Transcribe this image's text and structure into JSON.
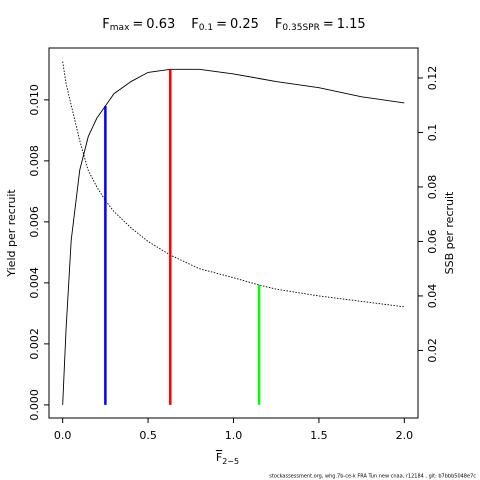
{
  "chart_data": {
    "type": "line",
    "x_label": {
      "text": "F",
      "sub": "2−5"
    },
    "y_label": "Yield per recruit",
    "y2_label": "SSB per recruit",
    "footer": "stockassessment.org, whg.7b-ce-k FRA Tun new cnaa, r12184 , git: b7bbb5048e7c",
    "x": [
      0,
      0.02,
      0.05,
      0.1,
      0.15,
      0.2,
      0.25,
      0.3,
      0.4,
      0.5,
      0.63,
      0.8,
      1.0,
      1.15,
      1.25,
      1.5,
      1.75,
      2.0
    ],
    "series": [
      {
        "name": "Yield per recruit",
        "color": "#000000",
        "dash": "none",
        "axis": "y",
        "values": [
          0,
          0.0025,
          0.0054,
          0.0077,
          0.0088,
          0.0094,
          0.0098,
          0.0102,
          0.0106,
          0.0109,
          0.011,
          0.011,
          0.01085,
          0.0107,
          0.0106,
          0.0104,
          0.0101,
          0.0099
        ]
      },
      {
        "name": "SSB per recruit",
        "color": "#000000",
        "dash": "1.5 1.5",
        "axis": "y2",
        "values": [
          0.126,
          0.118,
          0.11,
          0.097,
          0.086,
          0.08,
          0.075,
          0.071,
          0.065,
          0.06,
          0.055,
          0.05,
          0.0467,
          0.044,
          0.0425,
          0.04,
          0.038,
          0.036
        ]
      }
    ],
    "reference_lines": [
      {
        "symbol": "F",
        "sub": "max",
        "relation": "=",
        "x": 0.63,
        "y": 0.011,
        "axis": "y",
        "color": "#ff0000"
      },
      {
        "symbol": "F",
        "sub": "0.1",
        "relation": "=",
        "x": 0.25,
        "y": 0.0098,
        "axis": "y",
        "color": "#0000ff"
      },
      {
        "symbol": "F",
        "sub": "0.35SPR",
        "relation": "=",
        "x": 1.15,
        "y": 0.044,
        "axis": "y2",
        "color": "#00ff00"
      }
    ],
    "xlim": [
      -0.08,
      2.08
    ],
    "xticks": [
      {
        "value": 0,
        "label": "0.0"
      },
      {
        "value": 0.5,
        "label": "0.5"
      },
      {
        "value": 1,
        "label": "1.0"
      },
      {
        "value": 1.5,
        "label": "1.5"
      },
      {
        "value": 2,
        "label": "2.0"
      }
    ],
    "ylim": [
      -0.00043,
      0.0117
    ],
    "yticks": [
      {
        "value": 0,
        "label": "0.000"
      },
      {
        "value": 0.002,
        "label": "0.002"
      },
      {
        "value": 0.004,
        "label": "0.004"
      },
      {
        "value": 0.006,
        "label": "0.006"
      },
      {
        "value": 0.008,
        "label": "0.008"
      },
      {
        "value": 0.01,
        "label": "0.010"
      }
    ],
    "y2lim": [
      -0.0048,
      0.131
    ],
    "y2ticks": [
      0.02,
      0.04,
      0.06,
      0.08,
      0.1,
      0.12
    ]
  }
}
